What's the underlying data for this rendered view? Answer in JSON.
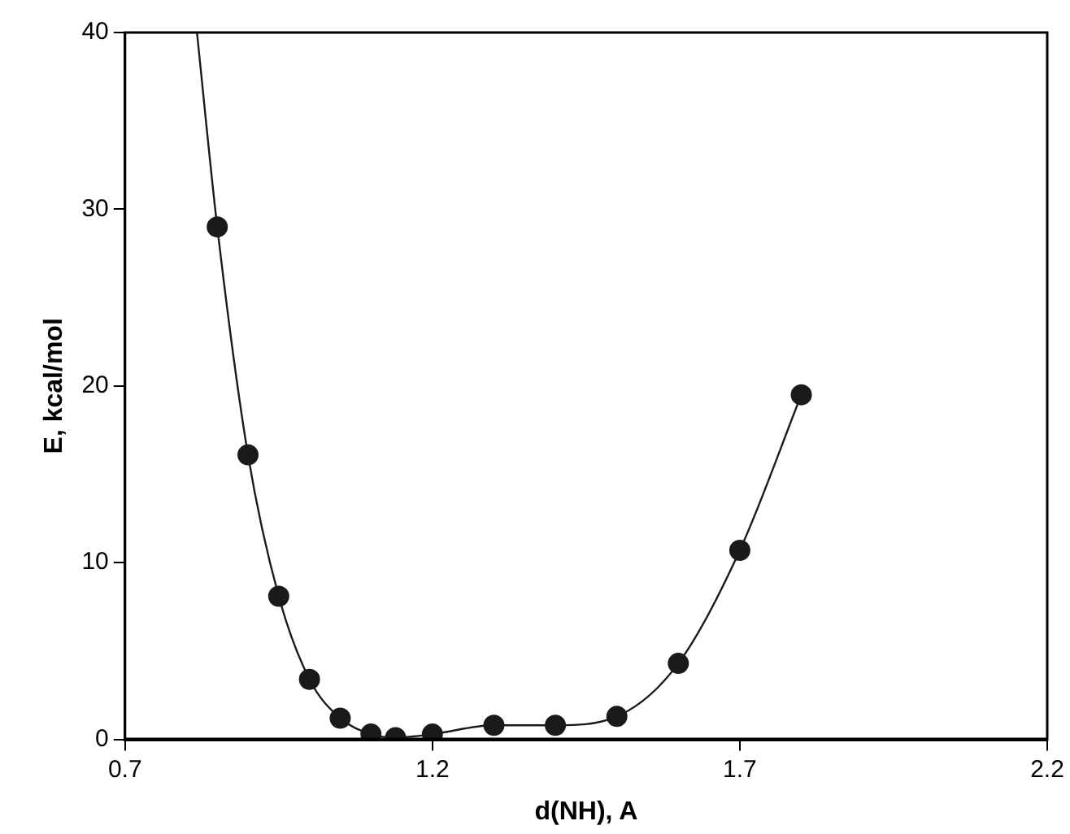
{
  "chart_data": {
    "type": "scatter",
    "xlabel": "d(NH), A",
    "ylabel": "E, kcal/mol",
    "xlim": [
      0.7,
      2.2
    ],
    "xticks": [
      0.7,
      1.2,
      1.7,
      2.2
    ],
    "ylim": [
      0,
      40
    ],
    "yticks": [
      0,
      10,
      20,
      30,
      40
    ],
    "grid": false,
    "legend": false,
    "series": [
      {
        "type": "line",
        "color": "#1a1a1a",
        "marker": "none",
        "x": [
          0.817,
          0.85,
          0.9,
          0.95,
          1.0,
          1.05,
          1.1,
          1.14,
          1.2,
          1.3,
          1.4,
          1.5,
          1.6,
          1.7,
          1.8
        ],
        "values": [
          40,
          29,
          16.1,
          8.1,
          3.4,
          1.2,
          0.3,
          0.1,
          0.3,
          0.8,
          0.8,
          1.3,
          4.3,
          10.7,
          19.5
        ]
      },
      {
        "color": "#1a1a1a",
        "marker": "circle",
        "x": [
          0.85,
          0.9,
          0.95,
          1.0,
          1.05,
          1.1,
          1.14,
          1.2,
          1.3,
          1.4,
          1.5,
          1.6,
          1.7,
          1.8
        ],
        "values": [
          29,
          16.1,
          8.1,
          3.4,
          1.2,
          0.3,
          0.1,
          0.3,
          0.8,
          0.8,
          1.3,
          4.3,
          10.7,
          19.5
        ]
      }
    ]
  }
}
